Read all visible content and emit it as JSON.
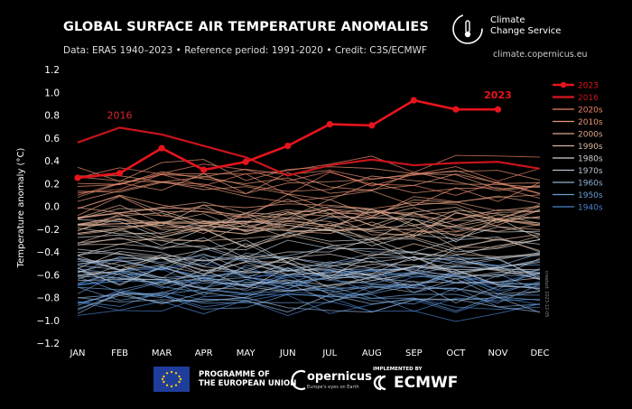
{
  "header": {
    "title": "GLOBAL SURFACE AIR TEMPERATURE ANOMALIES",
    "subtitle": "Data: ERA5 1940–2023 • Reference period: 1991-2020 • Credit: C3S/ECMWF"
  },
  "brand": {
    "name_line1": "Climate",
    "name_line2": "Change Service",
    "url": "climate.copernicus.eu"
  },
  "footer": {
    "eu_line1": "PROGRAMME OF",
    "eu_line2": "THE EUROPEAN UNION",
    "copernicus": "opernicus",
    "copernicus_sub": "Europe's eyes on Earth",
    "implemented": "IMPLEMENTED BY",
    "ecmwf": "ECMWF"
  },
  "side_credit": "created: 2023-12-05",
  "colors": {
    "background": "#000000",
    "highlight": "#e8141c",
    "decade_2020s": "#f0836a",
    "decade_2010s": "#e89778",
    "decade_2000s": "#dfa68b",
    "decade_1990s": "#d8b59e",
    "decade_1980s": "#cfcfcf",
    "decade_1970s": "#b7c1cf",
    "decade_1960s": "#8fb0d4",
    "decade_1950s": "#6a9bd3",
    "decade_1940s": "#4a82c8"
  },
  "chart_data": {
    "type": "line",
    "title": "GLOBAL SURFACE AIR TEMPERATURE ANOMALIES",
    "ylabel": "Temperature anomaly (°C)",
    "xlabel": "",
    "categories": [
      "JAN",
      "FEB",
      "MAR",
      "APR",
      "MAY",
      "JUN",
      "JUL",
      "AUG",
      "SEP",
      "OCT",
      "NOV",
      "DEC"
    ],
    "ylim": [
      -1.2,
      1.2
    ],
    "yticks": [
      "1.2",
      "1.0",
      "0.8",
      "0.6",
      "0.4",
      "0.2",
      "0.0",
      "−0.2",
      "−0.4",
      "−0.6",
      "−0.8",
      "−1.0",
      "−1.2"
    ],
    "grid": false,
    "legend_position": "right",
    "legend": [
      {
        "name": "2023",
        "style": "line-marker",
        "color": "#e8141c"
      },
      {
        "name": "2016",
        "style": "thick",
        "color": "#c8141c"
      },
      {
        "name": "2020s",
        "color": "#f0836a"
      },
      {
        "name": "2010s",
        "color": "#e89778"
      },
      {
        "name": "2000s",
        "color": "#dfa68b"
      },
      {
        "name": "1990s",
        "color": "#d8b59e"
      },
      {
        "name": "1980s",
        "color": "#cfcfcf"
      },
      {
        "name": "1970s",
        "color": "#b7c1cf"
      },
      {
        "name": "1960s",
        "color": "#8fb0d4"
      },
      {
        "name": "1950s",
        "color": "#6a9bd3"
      },
      {
        "name": "1940s",
        "color": "#4a82c8"
      }
    ],
    "highlight_series": [
      {
        "name": "2023",
        "values": [
          0.25,
          0.29,
          0.51,
          0.32,
          0.39,
          0.53,
          0.72,
          0.71,
          0.93,
          0.85,
          0.85,
          null
        ],
        "label": "2023"
      },
      {
        "name": "2016",
        "values": [
          0.56,
          0.69,
          0.63,
          0.53,
          0.43,
          0.27,
          0.36,
          0.41,
          0.36,
          0.38,
          0.39,
          0.33
        ],
        "label": "2016"
      }
    ],
    "decade_bands": [
      {
        "decade": "1940s",
        "years": 10,
        "center": -0.72,
        "spread": 0.22
      },
      {
        "decade": "1950s",
        "years": 10,
        "center": -0.7,
        "spread": 0.2
      },
      {
        "decade": "1960s",
        "years": 10,
        "center": -0.66,
        "spread": 0.2
      },
      {
        "decade": "1970s",
        "years": 10,
        "center": -0.55,
        "spread": 0.2
      },
      {
        "decade": "1980s",
        "years": 10,
        "center": -0.4,
        "spread": 0.2
      },
      {
        "decade": "1990s",
        "years": 10,
        "center": -0.22,
        "spread": 0.18
      },
      {
        "decade": "2000s",
        "years": 10,
        "center": -0.03,
        "spread": 0.18
      },
      {
        "decade": "2010s",
        "years": 10,
        "center": 0.15,
        "spread": 0.18
      },
      {
        "decade": "2020s",
        "years": 3,
        "center": 0.3,
        "spread": 0.12
      }
    ]
  }
}
